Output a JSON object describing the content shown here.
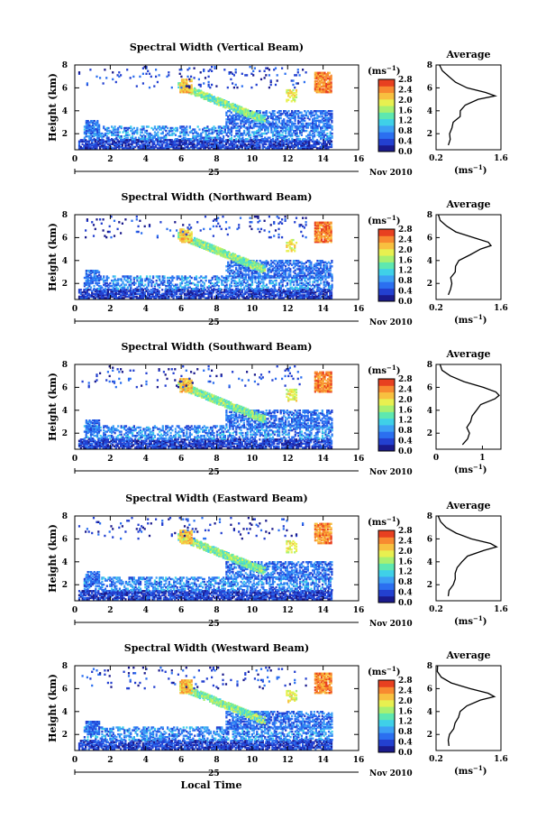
{
  "chart_data": [
    {
      "type": "heatmap",
      "title": "Spectral Width (Vertical Beam)",
      "xlabel": "",
      "ylabel": "Height (km)",
      "x_ticks": [
        "0",
        "2",
        "4",
        "6",
        "8",
        "10",
        "12",
        "14",
        "16"
      ],
      "y_ticks": [
        "2",
        "4",
        "6",
        "8"
      ],
      "xlim": [
        0,
        16
      ],
      "ylim": [
        0.6,
        8
      ],
      "date_day": "25",
      "date_rest": "Nov 2010",
      "colorbar": {
        "unit": "(ms",
        "unit_exp": "−1",
        "unit_close": ")",
        "ticks": [
          "0.0",
          "0.4",
          "0.8",
          "1.2",
          "1.6",
          "2.0",
          "2.4",
          "2.8"
        ]
      },
      "profile": {
        "title": "Average",
        "xlabel": "(ms",
        "xlabel_exp": "−1",
        "xlabel_close": ")",
        "x_ticks": [
          "0.2",
          "1.6"
        ],
        "y_ticks": [
          "2",
          "4",
          "6",
          "8"
        ],
        "xlim": [
          0.2,
          1.6
        ],
        "heights": [
          1,
          1.5,
          2,
          2.5,
          3,
          3.5,
          4,
          4.5,
          5,
          5.3,
          5.6,
          6,
          6.5,
          7,
          7.5,
          8
        ],
        "values": [
          0.45,
          0.48,
          0.5,
          0.55,
          0.6,
          0.68,
          0.75,
          0.85,
          1.1,
          1.5,
          1.3,
          0.9,
          0.6,
          0.45,
          0.35,
          0.3
        ]
      }
    },
    {
      "type": "heatmap",
      "title": "Spectral Width (Northward Beam)",
      "xlabel": "",
      "ylabel": "Height (km)",
      "x_ticks": [
        "0",
        "2",
        "4",
        "6",
        "8",
        "10",
        "12",
        "14",
        "16"
      ],
      "y_ticks": [
        "2",
        "4",
        "6",
        "8"
      ],
      "xlim": [
        0,
        16
      ],
      "ylim": [
        0.6,
        8
      ],
      "date_day": "25",
      "date_rest": "Nov 2010",
      "colorbar": {
        "unit": "(ms",
        "unit_exp": "−1",
        "unit_close": ")",
        "ticks": [
          "0.0",
          "0.4",
          "0.8",
          "1.2",
          "1.6",
          "2.0",
          "2.4",
          "2.8"
        ]
      },
      "profile": {
        "title": "Average",
        "xlabel": "(ms",
        "xlabel_exp": "−1",
        "xlabel_close": ")",
        "x_ticks": [
          "0.2",
          "1.6"
        ],
        "y_ticks": [
          "2",
          "4",
          "6",
          "8"
        ],
        "xlim": [
          0.2,
          1.6
        ],
        "heights": [
          1,
          1.5,
          2,
          2.5,
          3,
          3.5,
          4,
          4.5,
          5,
          5.3,
          5.6,
          6,
          6.5,
          7,
          7.5,
          8
        ],
        "values": [
          0.5,
          0.5,
          0.55,
          0.55,
          0.6,
          0.65,
          0.7,
          0.9,
          1.2,
          1.4,
          1.35,
          1.0,
          0.6,
          0.4,
          0.3,
          0.25
        ]
      }
    },
    {
      "type": "heatmap",
      "title": "Spectral Width (Southward Beam)",
      "xlabel": "",
      "ylabel": "Height (km)",
      "x_ticks": [
        "0",
        "2",
        "4",
        "6",
        "8",
        "10",
        "12",
        "14",
        "16"
      ],
      "y_ticks": [
        "2",
        "4",
        "6",
        "8"
      ],
      "xlim": [
        0,
        16
      ],
      "ylim": [
        0.6,
        8
      ],
      "date_day": "25",
      "date_rest": "Nov 2010",
      "colorbar": {
        "unit": "(ms",
        "unit_exp": "−1",
        "unit_close": ")",
        "ticks": [
          "0.0",
          "0.4",
          "0.8",
          "1.2",
          "1.6",
          "2.0",
          "2.4",
          "2.8"
        ]
      },
      "profile": {
        "title": "Average",
        "xlabel": "(ms",
        "xlabel_exp": "−1",
        "xlabel_close": ")",
        "x_ticks": [
          "0",
          "1"
        ],
        "y_ticks": [
          "2",
          "4",
          "6",
          "8"
        ],
        "xlim": [
          0,
          1.4
        ],
        "heights": [
          1,
          1.5,
          2,
          2.5,
          3,
          3.5,
          4,
          4.5,
          5,
          5.3,
          5.6,
          6,
          6.5,
          7,
          7.5,
          8
        ],
        "values": [
          0.6,
          0.65,
          0.7,
          0.7,
          0.75,
          0.8,
          0.85,
          1.0,
          1.25,
          1.35,
          1.3,
          1.0,
          0.6,
          0.3,
          0.15,
          0.05
        ]
      }
    },
    {
      "type": "heatmap",
      "title": "Spectral Width (Eastward Beam)",
      "xlabel": "",
      "ylabel": "Height (km)",
      "x_ticks": [
        "0",
        "2",
        "4",
        "6",
        "8",
        "10",
        "12",
        "14",
        "16"
      ],
      "y_ticks": [
        "2",
        "4",
        "6",
        "8"
      ],
      "xlim": [
        0,
        16
      ],
      "ylim": [
        0.6,
        8
      ],
      "date_day": "25",
      "date_rest": "Nov 2010",
      "colorbar": {
        "unit": "(ms",
        "unit_exp": "−1",
        "unit_close": ")",
        "ticks": [
          "0.0",
          "0.4",
          "0.8",
          "1.2",
          "1.6",
          "2.0",
          "2.4",
          "2.8"
        ]
      },
      "profile": {
        "title": "Average",
        "xlabel": "(ms",
        "xlabel_exp": "−1",
        "xlabel_close": ")",
        "x_ticks": [
          "0.2",
          "1.6"
        ],
        "y_ticks": [
          "2",
          "4",
          "6",
          "8"
        ],
        "xlim": [
          0.2,
          1.6
        ],
        "heights": [
          1,
          1.5,
          2,
          2.5,
          3,
          3.5,
          4,
          4.5,
          5,
          5.3,
          5.6,
          6,
          6.5,
          7,
          7.5,
          8
        ],
        "values": [
          0.5,
          0.5,
          0.55,
          0.6,
          0.6,
          0.65,
          0.75,
          0.9,
          1.2,
          1.5,
          1.4,
          1.0,
          0.6,
          0.4,
          0.3,
          0.25
        ]
      }
    },
    {
      "type": "heatmap",
      "title": "Spectral Width (Westward Beam)",
      "xlabel": "Local Time",
      "ylabel": "Height (km)",
      "x_ticks": [
        "0",
        "2",
        "4",
        "6",
        "8",
        "10",
        "12",
        "14",
        "16"
      ],
      "y_ticks": [
        "2",
        "4",
        "6",
        "8"
      ],
      "xlim": [
        0,
        16
      ],
      "ylim": [
        0.6,
        8
      ],
      "date_day": "25",
      "date_rest": "Nov 2010",
      "colorbar": {
        "unit": "(ms",
        "unit_exp": "−1",
        "unit_close": ")",
        "ticks": [
          "0.0",
          "0.4",
          "0.8",
          "1.2",
          "1.6",
          "2.0",
          "2.4",
          "2.8"
        ]
      },
      "profile": {
        "title": "Average",
        "xlabel": "(ms",
        "xlabel_exp": "−1",
        "xlabel_close": ")",
        "x_ticks": [
          "0.2",
          "1.6"
        ],
        "y_ticks": [
          "2",
          "4",
          "6",
          "8"
        ],
        "xlim": [
          0.2,
          1.6
        ],
        "heights": [
          1,
          1.5,
          2,
          2.5,
          3,
          3.5,
          4,
          4.5,
          5,
          5.3,
          5.6,
          6,
          6.5,
          7,
          7.5,
          8
        ],
        "values": [
          0.45,
          0.5,
          0.5,
          0.55,
          0.6,
          0.65,
          0.7,
          0.85,
          1.15,
          1.45,
          1.35,
          0.95,
          0.55,
          0.35,
          0.25,
          0.2
        ]
      }
    }
  ],
  "colormap": [
    "#1a1a8c",
    "#2340d0",
    "#2b6ff0",
    "#3ca0f5",
    "#3fd0e8",
    "#5ee8b0",
    "#a8f070",
    "#e8f050",
    "#f8c040",
    "#f88a30",
    "#e84020"
  ]
}
